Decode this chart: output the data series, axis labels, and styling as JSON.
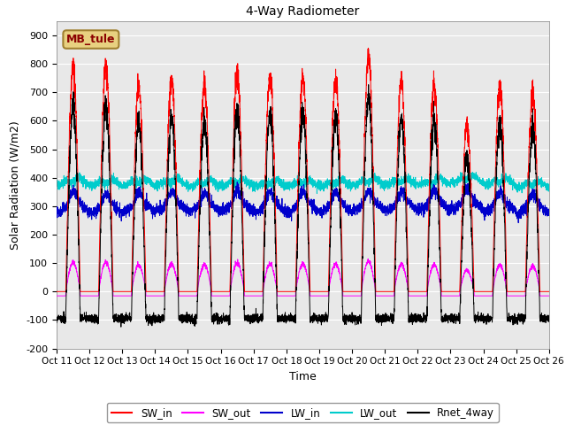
{
  "title": "4-Way Radiometer",
  "xlabel": "Time",
  "ylabel": "Solar Radiation (W/m2)",
  "ylim": [
    -200,
    950
  ],
  "yticks": [
    -200,
    -100,
    0,
    100,
    200,
    300,
    400,
    500,
    600,
    700,
    800,
    900
  ],
  "xlim": [
    0,
    15
  ],
  "xtick_labels": [
    "Oct 11",
    "Oct 12",
    "Oct 13",
    "Oct 14",
    "Oct 15",
    "Oct 16",
    "Oct 17",
    "Oct 18",
    "Oct 19",
    "Oct 20",
    "Oct 21",
    "Oct 22",
    "Oct 23",
    "Oct 24",
    "Oct 25",
    "Oct 26"
  ],
  "annotation_label": "MB_tule",
  "annotation_color": "#e8d080",
  "annotation_text_color": "#8b0000",
  "annotation_edge_color": "#a08030",
  "bg_color": "#ffffff",
  "plot_bg_color": "#e8e8e8",
  "sw_in_color": "#ff0000",
  "sw_out_color": "#ff00ff",
  "lw_in_color": "#0000cc",
  "lw_out_color": "#00cccc",
  "rnet_color": "#000000",
  "legend_entries": [
    "SW_in",
    "SW_out",
    "LW_in",
    "LW_out",
    "Rnet_4way"
  ],
  "num_days": 15,
  "sw_in_peaks": [
    790,
    790,
    720,
    750,
    730,
    760,
    750,
    745,
    740,
    820,
    740,
    730,
    580,
    720,
    700
  ],
  "lw_out_bases": [
    390,
    385,
    388,
    388,
    385,
    388,
    385,
    385,
    385,
    390,
    390,
    390,
    400,
    390,
    380
  ],
  "lw_in_bases": [
    300,
    295,
    300,
    305,
    300,
    305,
    300,
    300,
    300,
    305,
    305,
    305,
    310,
    300,
    295
  ]
}
